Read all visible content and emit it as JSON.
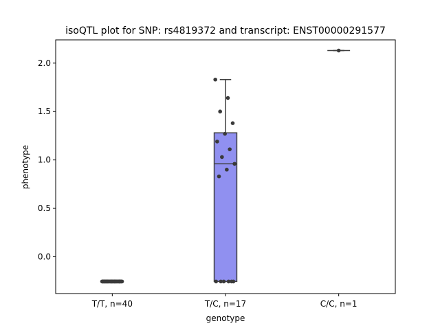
{
  "chart_data": {
    "type": "box",
    "title": "isoQTL plot for SNP: rs4819372 and transcript: ENST00000291577",
    "xlabel": "genotype",
    "ylabel": "phenotype",
    "ylim": [
      -0.38,
      2.24
    ],
    "yticks": [
      0.0,
      0.5,
      1.0,
      1.5,
      2.0
    ],
    "ytick_labels": [
      "0.0",
      "0.5",
      "1.0",
      "1.5",
      "2.0"
    ],
    "categories": [
      "T/T, n=40",
      "T/C, n=17",
      "C/C, n=1"
    ],
    "box_color": "#9090f0",
    "point_color": "#3a3a3a",
    "boxes": [
      {
        "category": "T/T, n=40",
        "min": -0.255,
        "q1": -0.255,
        "median": -0.255,
        "q3": -0.255,
        "max": -0.255
      },
      {
        "category": "T/C, n=17",
        "min": -0.255,
        "q1": -0.255,
        "median": 0.96,
        "q3": 1.28,
        "max": 1.83
      },
      {
        "category": "C/C, n=1",
        "min": 2.13,
        "q1": 2.13,
        "median": 2.13,
        "q3": 2.13,
        "max": 2.13
      }
    ],
    "points": [
      {
        "category": "T/T, n=40",
        "values": [
          -0.255,
          -0.255,
          -0.255,
          -0.255,
          -0.255,
          -0.255,
          -0.255,
          -0.255,
          -0.255,
          -0.255,
          -0.255,
          -0.255,
          -0.255,
          -0.255,
          -0.255,
          -0.255,
          -0.255,
          -0.255,
          -0.255,
          -0.255,
          -0.255,
          -0.255,
          -0.255,
          -0.255,
          -0.255,
          -0.255,
          -0.255,
          -0.255,
          -0.255,
          -0.255,
          -0.255,
          -0.255,
          -0.255,
          -0.255,
          -0.255,
          -0.255,
          -0.255,
          -0.255,
          -0.255,
          -0.255
        ]
      },
      {
        "category": "T/C, n=17",
        "values": [
          1.83,
          1.64,
          1.5,
          1.38,
          1.27,
          1.19,
          1.11,
          1.03,
          0.96,
          0.9,
          0.83,
          -0.255,
          -0.255,
          -0.255,
          -0.255,
          -0.255,
          -0.255
        ]
      },
      {
        "category": "C/C, n=1",
        "values": [
          2.13
        ]
      }
    ]
  }
}
